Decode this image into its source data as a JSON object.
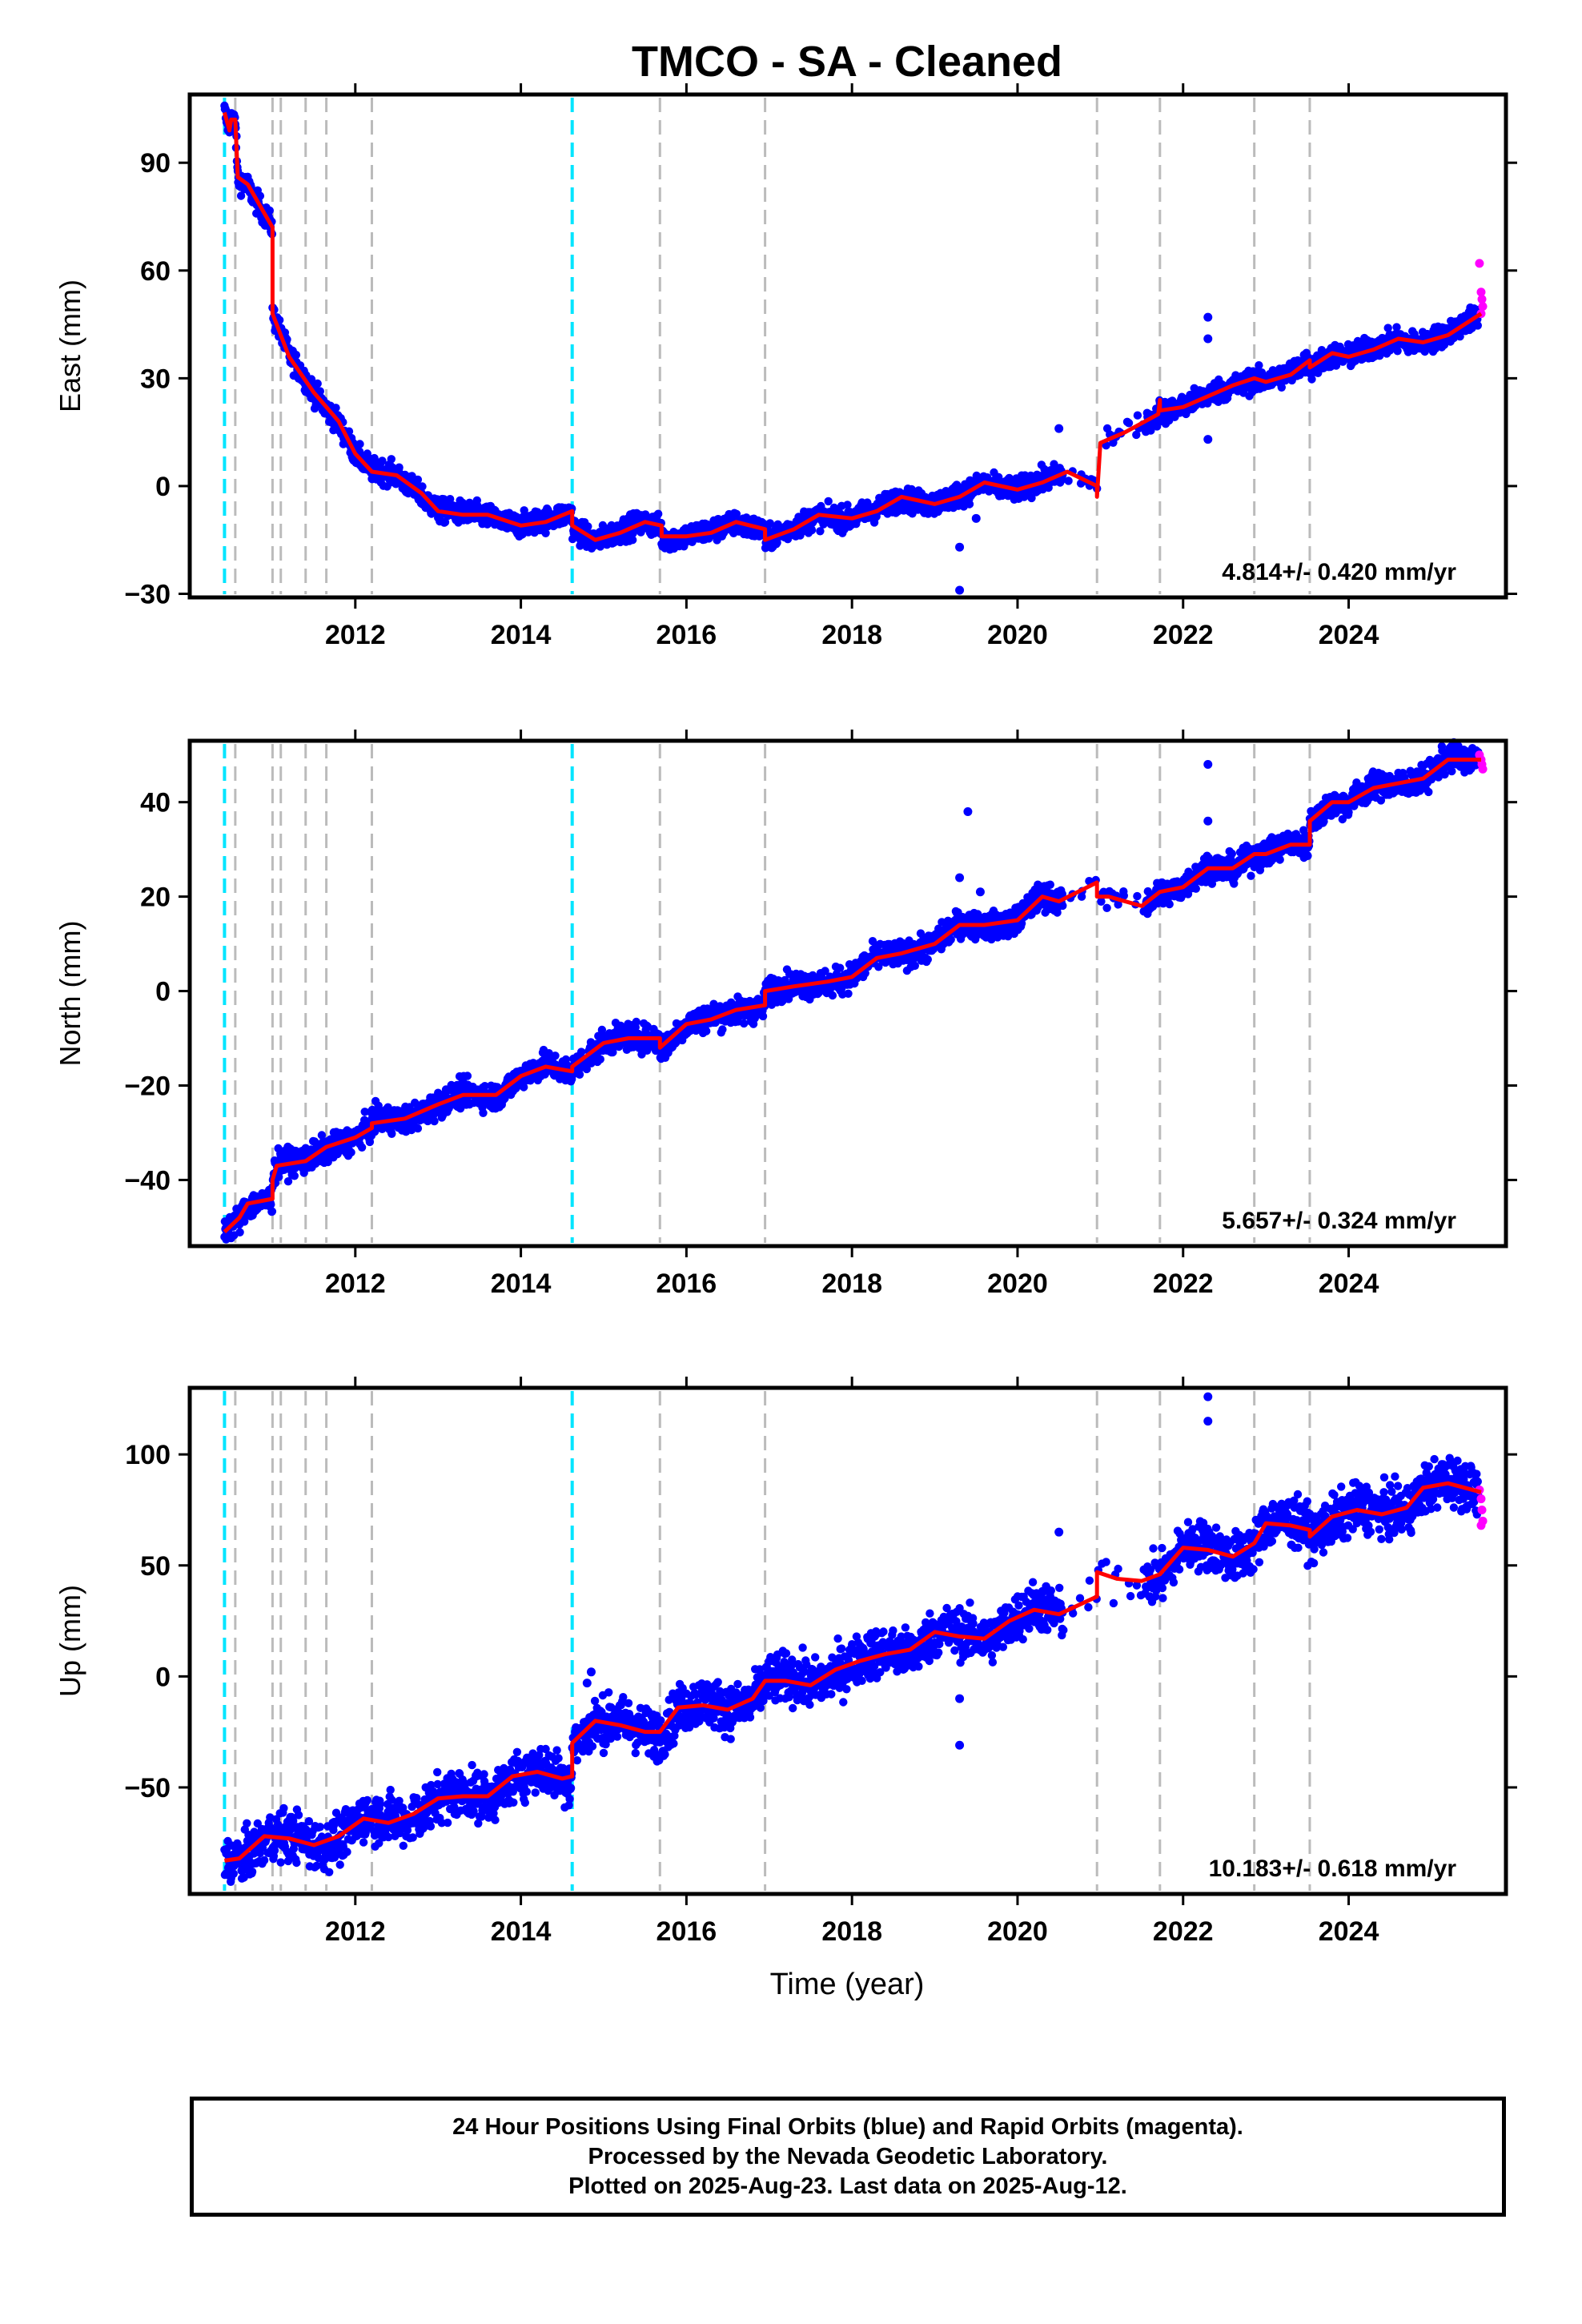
{
  "chart_data": {
    "type": "scatter",
    "title": "TMCO  - SA - Cleaned",
    "xlabel": "Time (year)",
    "xlim": [
      2010.0,
      2025.9
    ],
    "x_ticks": [
      2012,
      2014,
      2016,
      2018,
      2020,
      2022,
      2024
    ],
    "x_tick_labels": [
      "2012",
      "2014",
      "2016",
      "2018",
      "2020",
      "2022",
      "2024"
    ],
    "colors": {
      "final_orbits": "#0000ff",
      "rapid_orbits": "#ff00ff",
      "model": "#ff0000",
      "event_cyan": "#00e5ff",
      "event_gray": "#bbbbbb"
    },
    "events_cyan": [
      2010.42,
      2014.62
    ],
    "events_gray": [
      2010.55,
      2011.0,
      2011.1,
      2011.4,
      2011.65,
      2012.2,
      2015.68,
      2016.95,
      2020.96,
      2021.72,
      2022.86,
      2023.53
    ],
    "panels": [
      {
        "ylabel": "East (mm)",
        "ylim": [
          -31,
          109
        ],
        "y_ticks": [
          -30,
          0,
          30,
          60,
          90
        ],
        "y_tick_labels": [
          "−30",
          "0",
          "30",
          "60",
          "90"
        ],
        "rate_text": "4.814+/- 0.420 mm/yr",
        "gap": [
          2020.55,
          2021.55
        ],
        "model_points": [
          [
            2010.42,
            104
          ],
          [
            2010.48,
            99
          ],
          [
            2010.5,
            102
          ],
          [
            2010.55,
            102
          ],
          [
            2010.58,
            86
          ],
          [
            2010.7,
            84
          ],
          [
            2010.85,
            78
          ],
          [
            2010.95,
            74
          ],
          [
            2011.0,
            72
          ],
          [
            2011.0,
            48
          ],
          [
            2011.2,
            36
          ],
          [
            2011.5,
            26
          ],
          [
            2011.8,
            18
          ],
          [
            2012.0,
            9
          ],
          [
            2012.2,
            4
          ],
          [
            2012.5,
            3
          ],
          [
            2012.8,
            -2
          ],
          [
            2013.0,
            -7
          ],
          [
            2013.3,
            -8
          ],
          [
            2013.6,
            -8
          ],
          [
            2014.0,
            -11
          ],
          [
            2014.3,
            -10
          ],
          [
            2014.62,
            -7
          ],
          [
            2014.62,
            -11
          ],
          [
            2014.9,
            -15
          ],
          [
            2015.2,
            -13
          ],
          [
            2015.5,
            -10
          ],
          [
            2015.7,
            -11
          ],
          [
            2015.7,
            -14
          ],
          [
            2016.0,
            -14
          ],
          [
            2016.3,
            -13
          ],
          [
            2016.6,
            -10
          ],
          [
            2016.95,
            -12
          ],
          [
            2016.95,
            -15
          ],
          [
            2017.3,
            -12
          ],
          [
            2017.6,
            -8
          ],
          [
            2018.0,
            -9
          ],
          [
            2018.3,
            -7
          ],
          [
            2018.6,
            -3
          ],
          [
            2019.0,
            -5
          ],
          [
            2019.3,
            -3
          ],
          [
            2019.6,
            1
          ],
          [
            2020.0,
            -1
          ],
          [
            2020.3,
            1
          ],
          [
            2020.6,
            4
          ],
          [
            2020.96,
            0
          ],
          [
            2020.96,
            -3
          ],
          [
            2021.0,
            12
          ],
          [
            2021.3,
            15
          ],
          [
            2021.7,
            20
          ],
          [
            2021.72,
            24
          ],
          [
            2021.72,
            21
          ],
          [
            2022.0,
            22
          ],
          [
            2022.3,
            25
          ],
          [
            2022.6,
            28
          ],
          [
            2022.86,
            30
          ],
          [
            2023.0,
            29
          ],
          [
            2023.3,
            31
          ],
          [
            2023.53,
            35
          ],
          [
            2023.53,
            33
          ],
          [
            2023.8,
            37
          ],
          [
            2024.0,
            36
          ],
          [
            2024.3,
            38
          ],
          [
            2024.6,
            41
          ],
          [
            2024.9,
            40
          ],
          [
            2025.2,
            42
          ],
          [
            2025.6,
            48
          ]
        ],
        "outliers": [
          [
            2019.3,
            -17
          ],
          [
            2019.3,
            -29
          ],
          [
            2022.3,
            13
          ],
          [
            2022.3,
            41
          ],
          [
            2022.3,
            47
          ],
          [
            2019.5,
            -9
          ],
          [
            2020.5,
            16
          ]
        ],
        "rapid_points": [
          [
            2025.58,
            62
          ],
          [
            2025.6,
            54
          ],
          [
            2025.61,
            52
          ],
          [
            2025.62,
            50
          ],
          [
            2025.6,
            48
          ]
        ],
        "noise": 1.6
      },
      {
        "ylabel": "North (mm)",
        "ylim": [
          -54,
          53
        ],
        "y_ticks": [
          -40,
          -20,
          0,
          20,
          40
        ],
        "y_tick_labels": [
          "−40",
          "−20",
          "0",
          "20",
          "40"
        ],
        "rate_text": "5.657+/- 0.324 mm/yr",
        "gap": [
          2020.55,
          2021.55
        ],
        "model_points": [
          [
            2010.42,
            -51
          ],
          [
            2010.6,
            -48
          ],
          [
            2010.7,
            -45
          ],
          [
            2011.0,
            -44
          ],
          [
            2011.0,
            -40
          ],
          [
            2011.05,
            -37
          ],
          [
            2011.4,
            -36
          ],
          [
            2011.65,
            -33
          ],
          [
            2012.0,
            -31
          ],
          [
            2012.2,
            -29
          ],
          [
            2012.2,
            -28
          ],
          [
            2012.6,
            -27
          ],
          [
            2013.0,
            -24
          ],
          [
            2013.3,
            -22
          ],
          [
            2013.7,
            -22
          ],
          [
            2014.0,
            -18
          ],
          [
            2014.3,
            -16
          ],
          [
            2014.62,
            -17
          ],
          [
            2014.62,
            -16
          ],
          [
            2015.0,
            -11
          ],
          [
            2015.3,
            -10
          ],
          [
            2015.68,
            -10
          ],
          [
            2015.68,
            -12
          ],
          [
            2016.0,
            -7
          ],
          [
            2016.3,
            -6
          ],
          [
            2016.6,
            -4
          ],
          [
            2016.95,
            -3
          ],
          [
            2016.95,
            0
          ],
          [
            2017.3,
            1
          ],
          [
            2017.7,
            2
          ],
          [
            2018.0,
            3
          ],
          [
            2018.3,
            7
          ],
          [
            2018.6,
            8
          ],
          [
            2019.0,
            10
          ],
          [
            2019.3,
            14
          ],
          [
            2019.6,
            14
          ],
          [
            2020.0,
            15
          ],
          [
            2020.3,
            20
          ],
          [
            2020.5,
            19
          ],
          [
            2020.96,
            23
          ],
          [
            2020.96,
            20
          ],
          [
            2021.1,
            20
          ],
          [
            2021.5,
            18
          ],
          [
            2021.72,
            21
          ],
          [
            2022.0,
            22
          ],
          [
            2022.3,
            26
          ],
          [
            2022.6,
            26
          ],
          [
            2022.86,
            29
          ],
          [
            2023.0,
            29
          ],
          [
            2023.3,
            31
          ],
          [
            2023.53,
            31
          ],
          [
            2023.53,
            36
          ],
          [
            2023.8,
            40
          ],
          [
            2024.0,
            40
          ],
          [
            2024.3,
            43
          ],
          [
            2024.6,
            44
          ],
          [
            2024.9,
            45
          ],
          [
            2025.2,
            49
          ],
          [
            2025.6,
            49
          ]
        ],
        "outliers": [
          [
            2019.4,
            38
          ],
          [
            2019.3,
            24
          ],
          [
            2022.3,
            48
          ],
          [
            2022.3,
            36
          ],
          [
            2019.55,
            21
          ]
        ],
        "rapid_points": [
          [
            2025.58,
            50
          ],
          [
            2025.6,
            49
          ],
          [
            2025.61,
            48
          ],
          [
            2025.62,
            47
          ]
        ],
        "noise": 1.4
      },
      {
        "ylabel": "Up (mm)",
        "ylim": [
          -98,
          130
        ],
        "y_ticks": [
          -50,
          0,
          50,
          100
        ],
        "y_tick_labels": [
          "−50",
          "0",
          "50",
          "100"
        ],
        "rate_text": "10.183+/- 0.618 mm/yr",
        "gap": [
          2020.55,
          2021.55
        ],
        "model_points": [
          [
            2010.42,
            -83
          ],
          [
            2010.6,
            -82
          ],
          [
            2010.9,
            -72
          ],
          [
            2011.2,
            -73
          ],
          [
            2011.5,
            -76
          ],
          [
            2011.8,
            -72
          ],
          [
            2012.1,
            -64
          ],
          [
            2012.4,
            -66
          ],
          [
            2012.7,
            -62
          ],
          [
            2013.0,
            -55
          ],
          [
            2013.3,
            -54
          ],
          [
            2013.6,
            -54
          ],
          [
            2013.9,
            -45
          ],
          [
            2014.2,
            -43
          ],
          [
            2014.5,
            -46
          ],
          [
            2014.62,
            -45
          ],
          [
            2014.62,
            -30
          ],
          [
            2014.9,
            -20
          ],
          [
            2015.2,
            -22
          ],
          [
            2015.5,
            -25
          ],
          [
            2015.68,
            -25
          ],
          [
            2015.9,
            -14
          ],
          [
            2016.2,
            -13
          ],
          [
            2016.5,
            -15
          ],
          [
            2016.8,
            -10
          ],
          [
            2016.95,
            -2
          ],
          [
            2017.2,
            -2
          ],
          [
            2017.5,
            -4
          ],
          [
            2017.8,
            3
          ],
          [
            2018.1,
            7
          ],
          [
            2018.4,
            10
          ],
          [
            2018.7,
            12
          ],
          [
            2019.0,
            20
          ],
          [
            2019.3,
            18
          ],
          [
            2019.6,
            17
          ],
          [
            2019.9,
            25
          ],
          [
            2020.2,
            30
          ],
          [
            2020.5,
            28
          ],
          [
            2020.96,
            36
          ],
          [
            2020.96,
            47
          ],
          [
            2021.2,
            44
          ],
          [
            2021.5,
            43
          ],
          [
            2021.72,
            46
          ],
          [
            2022.0,
            58
          ],
          [
            2022.3,
            57
          ],
          [
            2022.6,
            54
          ],
          [
            2022.86,
            60
          ],
          [
            2023.0,
            69
          ],
          [
            2023.3,
            68
          ],
          [
            2023.53,
            66
          ],
          [
            2023.53,
            63
          ],
          [
            2023.8,
            72
          ],
          [
            2024.1,
            75
          ],
          [
            2024.4,
            73
          ],
          [
            2024.7,
            76
          ],
          [
            2024.9,
            85
          ],
          [
            2025.2,
            87
          ],
          [
            2025.6,
            83
          ]
        ],
        "outliers": [
          [
            2022.3,
            126
          ],
          [
            2022.3,
            115
          ],
          [
            2019.3,
            -10
          ],
          [
            2019.3,
            -31
          ],
          [
            2014.8,
            -3
          ],
          [
            2014.85,
            2
          ],
          [
            2020.5,
            65
          ]
        ],
        "rapid_points": [
          [
            2025.58,
            84
          ],
          [
            2025.6,
            80
          ],
          [
            2025.61,
            75
          ],
          [
            2025.62,
            70
          ],
          [
            2025.6,
            68
          ]
        ],
        "noise": 5.5
      }
    ]
  },
  "caption": {
    "line1": "24 Hour Positions Using Final Orbits (blue) and Rapid Orbits (magenta).",
    "line2": "Processed by the Nevada Geodetic Laboratory.",
    "line3": "Plotted on 2025-Aug-23. Last data on 2025-Aug-12."
  }
}
